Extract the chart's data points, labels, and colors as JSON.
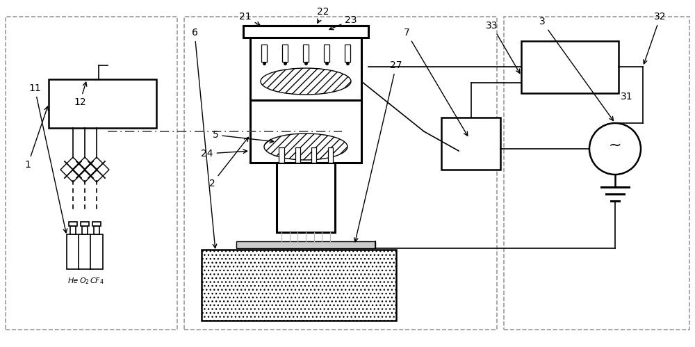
{
  "bg_color": "#ffffff",
  "gray_dash": "#999999",
  "black": "#000000",
  "lw_main": 1.8,
  "lw_thin": 1.2,
  "lw_thick": 2.2
}
